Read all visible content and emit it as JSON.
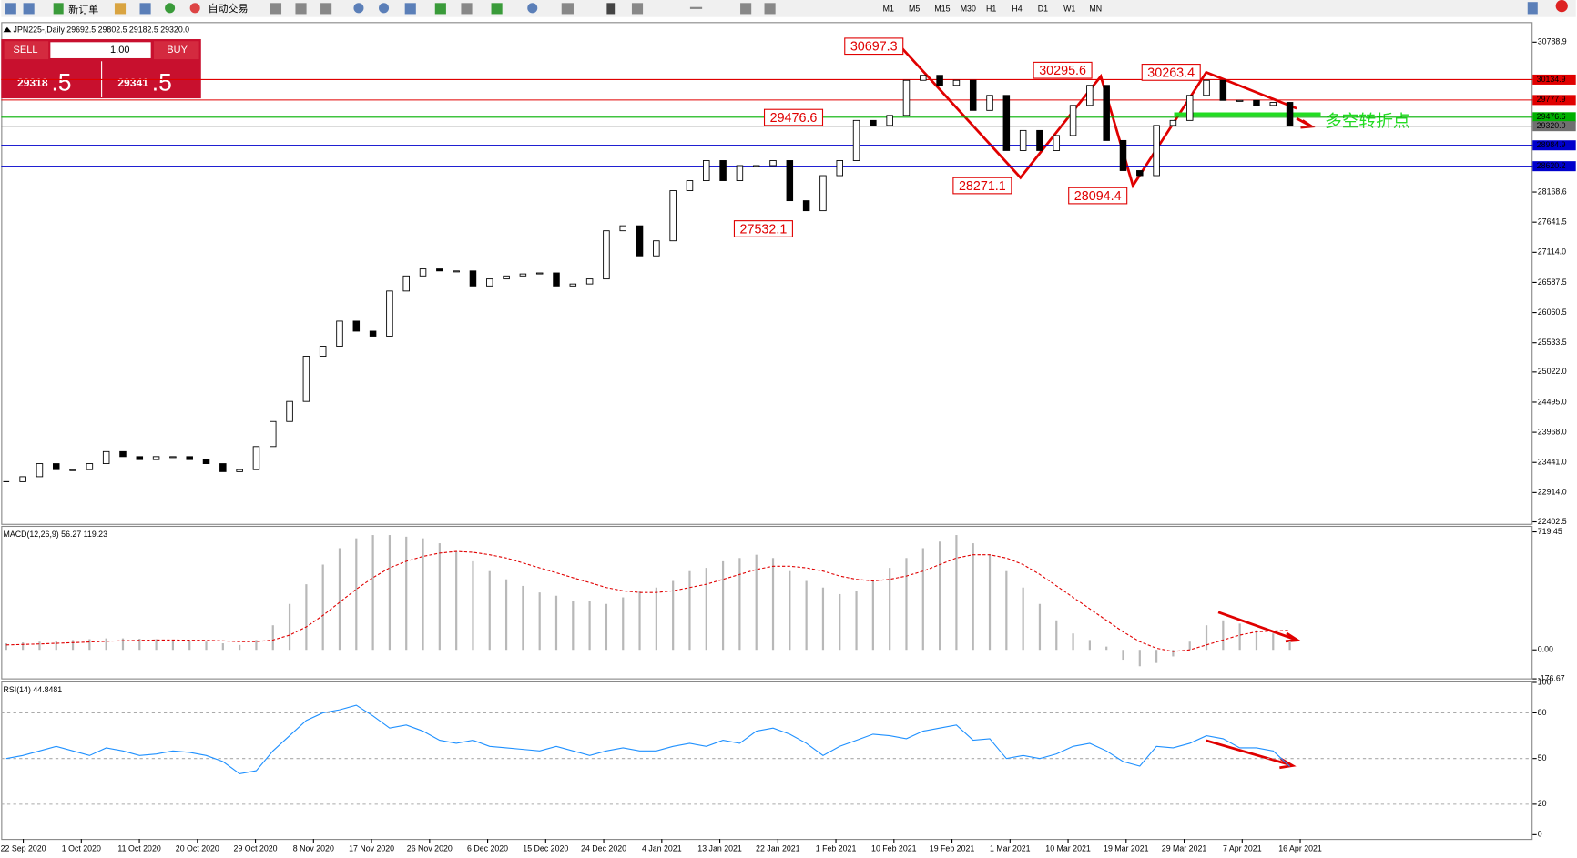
{
  "toolbar": {
    "new_order": "新订单",
    "auto_trading": "自动交易",
    "timeframes": [
      "M1",
      "M5",
      "M15",
      "M30",
      "H1",
      "H4",
      "D1",
      "W1",
      "MN"
    ]
  },
  "trade_panel": {
    "sell": "SELL",
    "buy": "BUY",
    "volume": "1.00",
    "sell_price_main": "29318",
    "sell_price_frac": ".5",
    "buy_price_main": "29341",
    "buy_price_frac": ".5"
  },
  "chart": {
    "title": "JPN225-,Daily 29692.5 29802.5 29182.5 29320.0",
    "closes": [
      23104.2,
      23191.9,
      23420.0,
      23314.7,
      23314.7,
      23420.0,
      23630.5,
      23542.8,
      23490.2,
      23542.8,
      23542.8,
      23490.2,
      23420.0,
      23279.6,
      23314.7,
      23718.3,
      24156.9,
      24507.8,
      25297.3,
      25472.8,
      25911.4,
      25735.9,
      25648.2,
      26437.7,
      26700.9,
      26823.7,
      26788.6,
      26788.6,
      26525.5,
      26648.3,
      26700.9,
      26736.0,
      26753.5,
      26525.5,
      26560.4,
      26648.3,
      27490.4,
      27578.2,
      27051.8,
      27315.0,
      28192.2,
      28367.7,
      28718.6,
      28367.7,
      28630.9,
      28630.9,
      28718.6,
      28016.8,
      27841.3,
      28455.4,
      28718.6,
      29420.4,
      29332.7,
      29508.1,
      30122.2,
      30209.9,
      30034.5,
      30122.2,
      29595.8,
      29859.0,
      28894.0,
      29244.9,
      28894.0,
      29157.2,
      29683.6,
      30034.5,
      29069.5,
      28543.1,
      28455.4,
      29332.7,
      29420.4,
      29859.0,
      30122.2,
      29771.3,
      29771.3,
      29683.6,
      29736.2,
      29320.0
    ],
    "ylim": [
      22367.4,
      31139.8
    ],
    "yticks": [
      30788.9,
      28168.6,
      27641.5,
      {
        "value": 27114.0,
        "label": "27114.0"
      },
      26587.5,
      26060.5,
      25533.5,
      {
        "value": 25022.0,
        "label": "25022.0"
      },
      {
        "value": 24495.0,
        "label": "24495.0"
      },
      {
        "value": 23968.0,
        "label": "23968.0"
      },
      {
        "value": 23441.0,
        "label": "23441.0"
      },
      {
        "value": 22914.0,
        "label": "22914.0"
      },
      22402.5
    ],
    "levels": [
      {
        "value": 30134.9,
        "color": "#e00000"
      },
      {
        "value": 29777.9,
        "color": "#e00000"
      },
      {
        "value": 29476.6,
        "color": "#00b000"
      },
      {
        "value": 29320.0,
        "label": "29320.0",
        "color": "#707070"
      },
      {
        "value": 28984.9,
        "color": "#0000cc"
      },
      {
        "value": 28620.2,
        "color": "#0000cc"
      }
    ],
    "swing_labels": [
      30697.3,
      30295.6,
      30263.4,
      29476.6,
      28271.1,
      28094.4,
      27532.1
    ],
    "annotation": "多空转折点",
    "dates": [
      "22 Sep 2020",
      "1 Oct 2020",
      "11 Oct 2020",
      "20 Oct 2020",
      "29 Oct 2020",
      "8 Nov 2020",
      "17 Nov 2020",
      "26 Nov 2020",
      "6 Dec 2020",
      "15 Dec 2020",
      "24 Dec 2020",
      "4 Jan 2021",
      "13 Jan 2021",
      "22 Jan 2021",
      "1 Feb 2021",
      "10 Feb 2021",
      "19 Feb 2021",
      "1 Mar 2021",
      "10 Mar 2021",
      "19 Mar 2021",
      "29 Mar 2021",
      "7 Apr 2021",
      "16 Apr 2021"
    ]
  },
  "macd": {
    "label": "MACD(12,26,9) 56.27 119.23",
    "histogram": [
      40,
      45,
      50,
      55,
      60,
      65,
      70,
      70,
      68,
      65,
      60,
      55,
      50,
      40,
      30,
      60,
      150,
      280,
      400,
      520,
      620,
      680,
      700,
      700,
      690,
      680,
      650,
      600,
      540,
      480,
      430,
      390,
      350,
      330,
      300,
      300,
      280,
      320,
      360,
      380,
      420,
      480,
      500,
      540,
      560,
      580,
      560,
      480,
      420,
      380,
      340,
      360,
      420,
      500,
      560,
      620,
      660,
      700,
      650,
      580,
      480,
      380,
      280,
      180,
      100,
      60,
      20,
      -60,
      -100,
      -80,
      -40,
      50,
      150,
      180,
      160,
      120,
      100,
      56.27
    ],
    "signal": [
      30,
      33,
      36,
      40,
      44,
      48,
      52,
      56,
      58,
      60,
      60,
      59,
      58,
      55,
      50,
      50,
      60,
      90,
      140,
      210,
      290,
      370,
      440,
      500,
      540,
      570,
      590,
      600,
      595,
      580,
      560,
      530,
      500,
      470,
      440,
      410,
      380,
      360,
      350,
      350,
      360,
      380,
      400,
      430,
      460,
      490,
      510,
      510,
      500,
      480,
      450,
      430,
      420,
      430,
      450,
      480,
      520,
      560,
      580,
      580,
      560,
      520,
      460,
      390,
      320,
      250,
      180,
      110,
      50,
      10,
      -10,
      0,
      30,
      60,
      90,
      110,
      115,
      119.23
    ],
    "ylim": [
      -180,
      750
    ],
    "yticks": [
      719.45,
      {
        "value": 0,
        "label": "0.00"
      },
      -176.67
    ]
  },
  "rsi": {
    "label": "RSI(14) 44.8481",
    "values": [
      50,
      52,
      55,
      58,
      55,
      52,
      57,
      55,
      52,
      53,
      55,
      54,
      52,
      48,
      40,
      42,
      55,
      65,
      75,
      80,
      82,
      85,
      78,
      70,
      72,
      68,
      62,
      60,
      62,
      58,
      57,
      56,
      55,
      58,
      55,
      52,
      55,
      57,
      55,
      55,
      58,
      60,
      58,
      62,
      60,
      68,
      70,
      66,
      60,
      52,
      58,
      62,
      66,
      65,
      63,
      68,
      70,
      72,
      62,
      63,
      50,
      52,
      50,
      53,
      58,
      60,
      55,
      48,
      45,
      58,
      57,
      60,
      65,
      63,
      57,
      57,
      55,
      44.8481
    ],
    "ylim": [
      -2.8,
      100
    ],
    "yticks": [
      100,
      80,
      50,
      20,
      0
    ],
    "levels": [
      80,
      50,
      20
    ]
  }
}
